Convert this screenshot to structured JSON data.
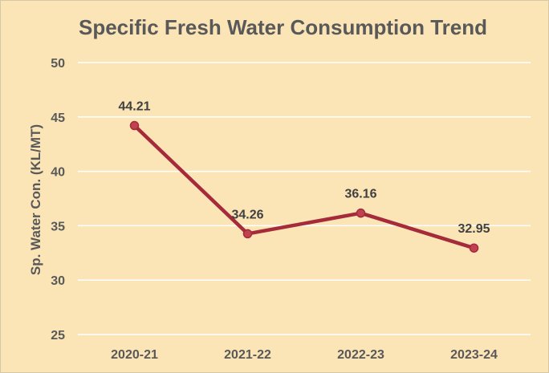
{
  "chart_data": {
    "type": "line",
    "title": "Specific Fresh Water Consumption Trend",
    "xlabel": "",
    "ylabel": "Sp. Water Con. (KL/MT)",
    "categories": [
      "2020-21",
      "2021-22",
      "2022-23",
      "2023-24"
    ],
    "series": [
      {
        "values": [
          44.21,
          34.26,
          36.16,
          32.95
        ]
      }
    ],
    "data_labels": [
      "44.21",
      "34.26",
      "36.16",
      "32.95"
    ],
    "ylim": [
      25,
      50
    ],
    "yticks": [
      25,
      30,
      35,
      40,
      45,
      50
    ],
    "grid": true,
    "legend": "none",
    "colors": {
      "background": "#fbe5b6",
      "line": "#a52a3a",
      "marker_fill": "#c0414f",
      "grid": "#ffffff",
      "text": "#595959"
    }
  }
}
